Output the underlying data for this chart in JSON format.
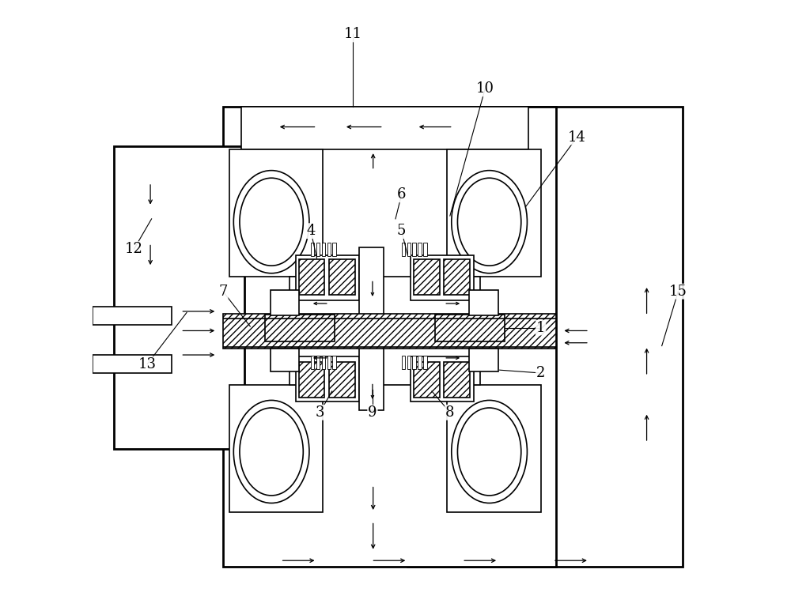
{
  "bg_color": "#ffffff",
  "line_color": "#000000",
  "fig_width": 10.0,
  "fig_height": 7.68,
  "label_fontsize": 13,
  "lw": 1.2,
  "lw_thick": 2.0
}
